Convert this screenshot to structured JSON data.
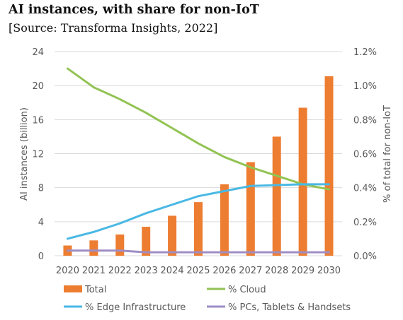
{
  "title": "AI instances, with share for non-IoT",
  "subtitle": "[Source: Transforma Insights, 2022]",
  "chart_data": {
    "type": "bar",
    "categories": [
      "2020",
      "2021",
      "2022",
      "2023",
      "2024",
      "2025",
      "2026",
      "2027",
      "2028",
      "2029",
      "2030"
    ],
    "ylabel": "AI instances (billion)",
    "y2label": "% of total for non-IoT",
    "ylim": [
      0,
      24
    ],
    "yticks": [
      0,
      4,
      8,
      12,
      16,
      20,
      24
    ],
    "y2lim": [
      0,
      1.2
    ],
    "y2ticks": [
      "0.0%",
      "0.2%",
      "0.4%",
      "0.6%",
      "0.8%",
      "1.0%",
      "1.2%"
    ],
    "grid": "horizontal",
    "legend_position": "bottom",
    "series": [
      {
        "name": "Total",
        "type": "bar",
        "axis": "left",
        "color": "#ED7D31",
        "values": [
          1.2,
          1.8,
          2.5,
          3.4,
          4.7,
          6.3,
          8.4,
          11.0,
          14.0,
          17.4,
          21.1
        ]
      },
      {
        "name": "% Cloud",
        "type": "line",
        "axis": "right",
        "color": "#92C353",
        "values": [
          1.1,
          0.99,
          0.92,
          0.84,
          0.75,
          0.66,
          0.58,
          0.52,
          0.47,
          0.42,
          0.39
        ]
      },
      {
        "name": "% Edge Infrastructure",
        "type": "line",
        "axis": "right",
        "color": "#49B8E4",
        "values": [
          0.1,
          0.14,
          0.19,
          0.25,
          0.3,
          0.35,
          0.38,
          0.41,
          0.415,
          0.42,
          0.42
        ]
      },
      {
        "name": "% PCs, Tablets & Handsets",
        "type": "line",
        "axis": "right",
        "color": "#9E8EC5",
        "values": [
          0.03,
          0.03,
          0.03,
          0.02,
          0.02,
          0.02,
          0.02,
          0.02,
          0.02,
          0.02,
          0.02
        ]
      }
    ]
  }
}
